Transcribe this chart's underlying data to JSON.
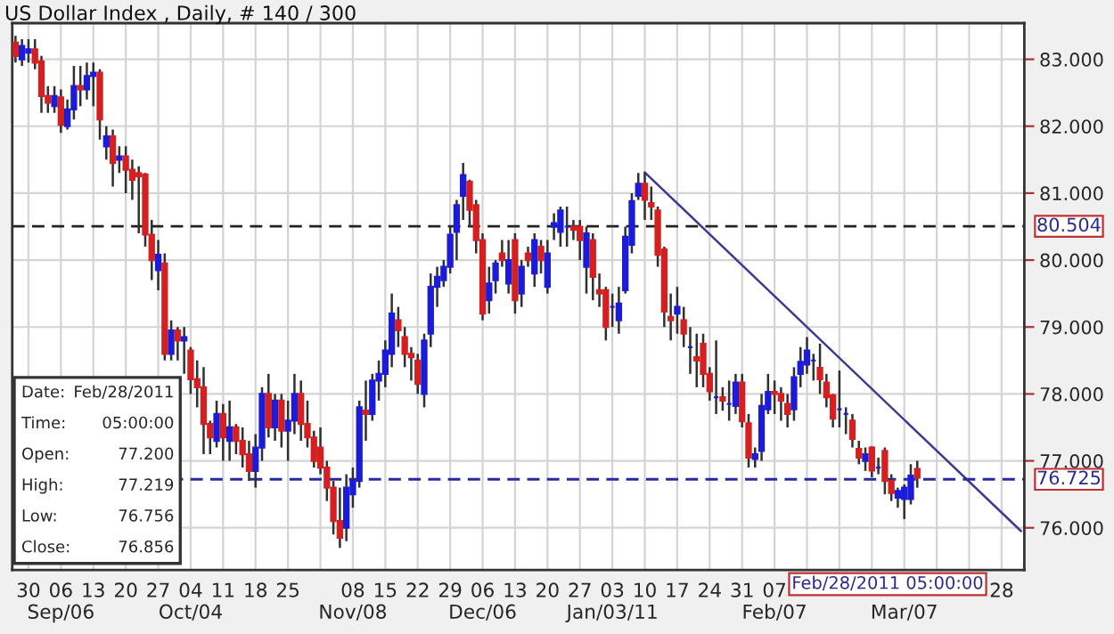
{
  "chart_data": {
    "type": "candlestick",
    "title": "US Dollar Index , Daily, # 140 / 300",
    "categories": [
      null,
      null,
      "30",
      null,
      null,
      null,
      null,
      "06\nSep/06",
      null,
      null,
      null,
      null,
      "13",
      null,
      null,
      null,
      null,
      "20",
      null,
      null,
      null,
      null,
      "27",
      null,
      null,
      null,
      null,
      "04\nOct/04",
      null,
      null,
      null,
      null,
      "11",
      null,
      null,
      null,
      null,
      "18",
      null,
      null,
      null,
      null,
      "25",
      null,
      null,
      null,
      null,
      null,
      null,
      null,
      null,
      null,
      "08\nNov/08",
      null,
      null,
      null,
      null,
      "15",
      null,
      null,
      null,
      null,
      "22",
      null,
      null,
      null,
      null,
      "29",
      null,
      null,
      null,
      null,
      "06\nDec/06",
      null,
      null,
      null,
      null,
      "13",
      null,
      null,
      null,
      null,
      "20",
      null,
      null,
      null,
      null,
      "27",
      null,
      null,
      null,
      null,
      "03\nJan/03/11",
      null,
      null,
      null,
      null,
      "10",
      null,
      null,
      null,
      null,
      "17",
      null,
      null,
      null,
      null,
      "24",
      null,
      null,
      null,
      null,
      "31",
      null,
      null,
      null,
      null,
      "07\nFeb/07",
      null,
      null,
      null,
      null,
      null,
      null,
      null,
      null,
      null,
      null,
      null,
      null,
      null,
      null,
      null,
      null,
      null,
      null,
      null,
      "\nMar/07",
      null,
      null,
      null,
      null,
      null,
      null,
      null,
      null,
      null,
      null,
      null,
      null,
      null,
      null,
      "28",
      null,
      null,
      null
    ],
    "ohlc": [
      [
        83.25,
        83.35,
        82.95,
        83.05
      ],
      [
        83.0,
        83.3,
        82.9,
        83.2
      ],
      [
        83.1,
        83.3,
        82.95,
        83.15
      ],
      [
        83.15,
        83.3,
        82.85,
        82.95
      ],
      [
        82.97,
        83.05,
        82.2,
        82.45
      ],
      [
        82.45,
        82.6,
        82.2,
        82.35
      ],
      [
        82.3,
        82.6,
        82.2,
        82.45
      ],
      [
        82.43,
        82.55,
        81.9,
        82.02
      ],
      [
        82.0,
        82.4,
        81.95,
        82.25
      ],
      [
        82.25,
        82.9,
        82.1,
        82.6
      ],
      [
        82.6,
        82.9,
        82.3,
        82.55
      ],
      [
        82.55,
        82.95,
        82.4,
        82.75
      ],
      [
        82.75,
        82.95,
        82.3,
        82.8
      ],
      [
        82.8,
        82.85,
        81.8,
        82.1
      ],
      [
        81.7,
        82.0,
        81.5,
        81.85
      ],
      [
        81.85,
        81.95,
        81.1,
        81.45
      ],
      [
        81.5,
        81.7,
        81.3,
        81.55
      ],
      [
        81.55,
        81.7,
        81.0,
        81.35
      ],
      [
        81.35,
        81.5,
        80.9,
        81.2
      ],
      [
        81.3,
        81.4,
        80.4,
        81.25
      ],
      [
        81.28,
        81.3,
        80.2,
        80.38
      ],
      [
        80.38,
        80.6,
        79.7,
        80.0
      ],
      [
        79.85,
        80.3,
        79.55,
        80.08
      ],
      [
        79.95,
        80.1,
        78.5,
        78.6
      ],
      [
        78.6,
        79.1,
        78.5,
        78.95
      ],
      [
        78.95,
        79.0,
        78.5,
        78.8
      ],
      [
        78.8,
        79.0,
        78.3,
        78.85
      ],
      [
        78.65,
        78.7,
        78.0,
        78.22
      ],
      [
        78.22,
        78.5,
        77.8,
        78.1
      ],
      [
        78.1,
        78.4,
        77.1,
        77.55
      ],
      [
        77.55,
        77.6,
        77.1,
        77.35
      ],
      [
        77.3,
        77.9,
        77.2,
        77.7
      ],
      [
        77.7,
        77.85,
        77.0,
        77.35
      ],
      [
        77.3,
        77.9,
        77.0,
        77.5
      ],
      [
        77.5,
        77.55,
        77.1,
        77.3
      ],
      [
        77.3,
        77.5,
        76.9,
        77.1
      ],
      [
        77.1,
        77.3,
        76.7,
        76.85
      ],
      [
        76.85,
        77.4,
        76.6,
        77.2
      ],
      [
        77.2,
        78.1,
        77.0,
        78.0
      ],
      [
        78.0,
        78.3,
        77.35,
        77.5
      ],
      [
        77.5,
        78.0,
        77.3,
        77.9
      ],
      [
        77.9,
        78.0,
        77.2,
        77.45
      ],
      [
        77.45,
        77.9,
        77.0,
        77.6
      ],
      [
        77.6,
        78.3,
        77.4,
        78.0
      ],
      [
        78.0,
        78.2,
        77.3,
        77.55
      ],
      [
        77.55,
        77.9,
        77.2,
        77.35
      ],
      [
        77.35,
        77.45,
        76.9,
        77.0
      ],
      [
        77.2,
        77.5,
        76.8,
        76.9
      ],
      [
        76.9,
        77.0,
        76.4,
        76.6
      ],
      [
        76.6,
        76.7,
        75.9,
        76.1
      ],
      [
        76.1,
        76.6,
        75.7,
        75.85
      ],
      [
        76.0,
        76.8,
        75.8,
        76.6
      ],
      [
        76.5,
        76.9,
        76.3,
        76.7
      ],
      [
        76.7,
        77.9,
        76.6,
        77.8
      ],
      [
        77.75,
        78.2,
        77.3,
        77.7
      ],
      [
        77.7,
        78.3,
        77.6,
        78.2
      ],
      [
        78.2,
        78.5,
        77.9,
        78.3
      ],
      [
        78.3,
        78.8,
        78.1,
        78.65
      ],
      [
        78.6,
        79.5,
        78.4,
        79.2
      ],
      [
        79.1,
        79.3,
        78.7,
        78.95
      ],
      [
        78.85,
        79.0,
        78.4,
        78.6
      ],
      [
        78.6,
        78.7,
        78.2,
        78.55
      ],
      [
        78.5,
        78.6,
        78.0,
        78.15
      ],
      [
        78.0,
        78.9,
        77.8,
        78.8
      ],
      [
        78.9,
        79.8,
        78.7,
        79.6
      ],
      [
        79.6,
        79.9,
        79.3,
        79.75
      ],
      [
        79.7,
        80.0,
        79.6,
        79.9
      ],
      [
        79.9,
        80.5,
        79.8,
        80.38
      ],
      [
        80.42,
        80.9,
        80.0,
        80.82
      ],
      [
        80.96,
        81.45,
        80.6,
        81.27
      ],
      [
        81.17,
        81.2,
        80.5,
        80.75
      ],
      [
        80.82,
        80.9,
        80.1,
        80.3
      ],
      [
        80.3,
        80.4,
        79.1,
        79.2
      ],
      [
        79.4,
        79.9,
        79.2,
        79.65
      ],
      [
        79.7,
        80.0,
        79.5,
        79.95
      ],
      [
        80.1,
        80.3,
        79.9,
        80.0
      ],
      [
        79.65,
        80.3,
        79.5,
        80.0
      ],
      [
        80.3,
        80.4,
        79.2,
        79.4
      ],
      [
        79.5,
        80.0,
        79.3,
        79.9
      ],
      [
        80.1,
        80.2,
        79.9,
        80.0
      ],
      [
        79.8,
        80.4,
        79.6,
        80.3
      ],
      [
        80.2,
        80.3,
        79.8,
        80.0
      ],
      [
        79.6,
        80.3,
        79.5,
        80.1
      ],
      [
        80.5,
        80.7,
        80.3,
        80.55
      ],
      [
        80.42,
        80.8,
        80.2,
        80.74
      ],
      [
        80.5,
        80.8,
        80.2,
        80.5
      ],
      [
        80.5,
        80.6,
        80.3,
        80.45
      ],
      [
        80.5,
        80.6,
        80.0,
        80.3
      ],
      [
        79.9,
        80.5,
        79.5,
        80.4
      ],
      [
        80.3,
        80.4,
        79.4,
        79.75
      ],
      [
        79.55,
        79.8,
        79.3,
        79.5
      ],
      [
        79.55,
        79.6,
        78.8,
        79.0
      ],
      [
        79.3,
        79.5,
        79.0,
        79.3
      ],
      [
        79.1,
        79.6,
        78.9,
        79.35
      ],
      [
        79.55,
        80.5,
        79.5,
        80.35
      ],
      [
        80.23,
        81.0,
        80.1,
        80.88
      ],
      [
        80.96,
        81.3,
        80.9,
        81.14
      ],
      [
        81.14,
        81.31,
        80.6,
        80.9
      ],
      [
        80.85,
        81.1,
        80.6,
        80.8
      ],
      [
        80.74,
        80.8,
        79.9,
        80.08
      ],
      [
        80.16,
        80.2,
        79.0,
        79.23
      ],
      [
        79.15,
        79.5,
        78.8,
        79.1
      ],
      [
        79.2,
        79.6,
        78.9,
        79.3
      ],
      [
        79.1,
        79.3,
        78.7,
        78.9
      ],
      [
        78.7,
        79.0,
        78.3,
        78.7
      ],
      [
        78.55,
        78.9,
        78.1,
        78.5
      ],
      [
        78.75,
        78.9,
        78.1,
        78.3
      ],
      [
        78.3,
        78.4,
        77.9,
        78.04
      ],
      [
        77.95,
        78.8,
        77.7,
        77.95
      ],
      [
        77.95,
        78.1,
        77.75,
        77.9
      ],
      [
        77.85,
        78.2,
        77.6,
        77.85
      ],
      [
        77.82,
        78.3,
        77.7,
        78.17
      ],
      [
        78.17,
        78.3,
        77.5,
        77.59
      ],
      [
        77.56,
        77.7,
        76.9,
        77.05
      ],
      [
        77.03,
        77.2,
        76.9,
        77.1
      ],
      [
        77.15,
        78.0,
        77.0,
        77.82
      ],
      [
        77.77,
        78.3,
        77.7,
        78.03
      ],
      [
        78.03,
        78.2,
        77.7,
        78.0
      ],
      [
        78.0,
        78.1,
        77.6,
        77.9
      ],
      [
        77.85,
        78.0,
        77.5,
        77.7
      ],
      [
        77.77,
        78.4,
        77.6,
        78.25
      ],
      [
        78.3,
        78.7,
        78.1,
        78.48
      ],
      [
        78.44,
        78.85,
        78.3,
        78.65
      ],
      [
        78.5,
        78.6,
        78.2,
        78.5
      ],
      [
        78.39,
        78.75,
        78.0,
        78.22
      ],
      [
        78.17,
        78.3,
        77.8,
        77.95
      ],
      [
        77.98,
        78.0,
        77.5,
        77.63
      ],
      [
        77.77,
        78.35,
        77.5,
        77.77
      ],
      [
        77.7,
        77.8,
        77.4,
        77.7
      ],
      [
        77.6,
        77.7,
        77.2,
        77.33
      ],
      [
        77.18,
        77.3,
        76.95,
        77.05
      ],
      [
        77.0,
        77.2,
        76.85,
        77.1
      ],
      [
        77.2,
        77.219,
        76.756,
        76.856
      ],
      [
        76.9,
        77.05,
        76.8,
        76.9
      ],
      [
        77.15,
        77.2,
        76.5,
        76.7
      ],
      [
        76.7,
        76.8,
        76.4,
        76.52
      ],
      [
        76.45,
        76.6,
        76.3,
        76.55
      ],
      [
        76.43,
        76.65,
        76.13,
        76.6
      ],
      [
        76.43,
        76.95,
        76.35,
        76.78
      ],
      [
        76.88,
        77.0,
        76.6,
        76.75
      ],
      null,
      null,
      null,
      null,
      null,
      null,
      null,
      null,
      null,
      null,
      null,
      null,
      null,
      null,
      null,
      null
    ],
    "series": [
      {
        "type": "line",
        "color": "#3a3a90",
        "values": [
          null,
          null,
          null,
          null,
          null,
          null,
          null,
          null,
          null,
          null,
          null,
          null,
          null,
          null,
          null,
          null,
          null,
          null,
          null,
          null,
          null,
          null,
          null,
          null,
          null,
          null,
          null,
          null,
          null,
          null,
          null,
          null,
          null,
          null,
          null,
          null,
          null,
          null,
          null,
          null,
          null,
          null,
          null,
          null,
          null,
          null,
          null,
          null,
          null,
          null,
          null,
          null,
          null,
          null,
          null,
          null,
          null,
          null,
          null,
          null,
          null,
          null,
          null,
          null,
          null,
          null,
          null,
          null,
          null,
          null,
          null,
          null,
          null,
          null,
          null,
          null,
          null,
          null,
          null,
          null,
          null,
          null,
          null,
          null,
          null,
          null,
          null,
          null,
          null,
          null,
          null,
          null,
          null,
          null,
          null,
          null,
          null,
          81.31,
          null,
          null,
          null,
          null,
          null,
          null,
          null,
          null,
          null,
          null,
          null,
          null,
          null,
          null,
          null,
          null,
          null,
          null,
          null,
          null,
          null,
          null,
          null,
          null,
          null,
          null,
          null,
          null,
          null,
          null,
          null,
          null,
          null,
          null,
          null,
          null,
          null,
          null,
          null,
          null,
          null,
          null,
          null,
          null,
          null,
          null,
          null,
          null,
          null,
          null,
          null,
          null,
          null,
          null,
          null,
          null,
          null,
          75.95
        ]
      }
    ],
    "ylim": [
      75.37,
      83.54
    ],
    "yticks": [
      {
        "value": 76,
        "label": "76.000"
      },
      {
        "value": 77,
        "label": "77.000"
      },
      {
        "value": 78,
        "label": "78.000"
      },
      {
        "value": 79,
        "label": "79.000"
      },
      {
        "value": 80,
        "label": "80.000"
      },
      {
        "value": 81,
        "label": "81.000"
      },
      {
        "value": 82,
        "label": "82.000"
      },
      {
        "value": 83,
        "label": "83.000"
      }
    ],
    "ref_lines": [
      {
        "axis": "y",
        "value": 80.504,
        "label": "80.504",
        "color": "#222222",
        "line_style": "dashed"
      },
      {
        "axis": "y",
        "value": 76.725,
        "label": "76.725",
        "color": "#2a2aa0",
        "line_style": "dashed"
      }
    ],
    "annotations": [
      "Date: Feb/28/2011",
      "Time: 05:00:00",
      "Open: 77.200",
      "High: 77.219",
      "Low: 76.756",
      "Close: 76.856",
      "Feb/28/2011 05:00:00"
    ],
    "grid": true,
    "legend": false
  }
}
